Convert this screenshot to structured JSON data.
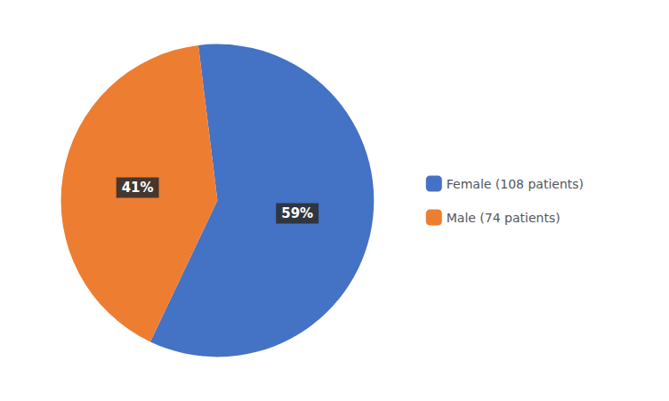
{
  "chart_data": {
    "type": "pie",
    "categories": [
      "Female (108 patients)",
      "Male (74 patients)"
    ],
    "values": [
      59,
      41
    ],
    "value_labels": [
      "59%",
      "41%"
    ],
    "colors": [
      "#4472C4",
      "#ED7D31"
    ],
    "data_labels": true,
    "legend": "right"
  }
}
